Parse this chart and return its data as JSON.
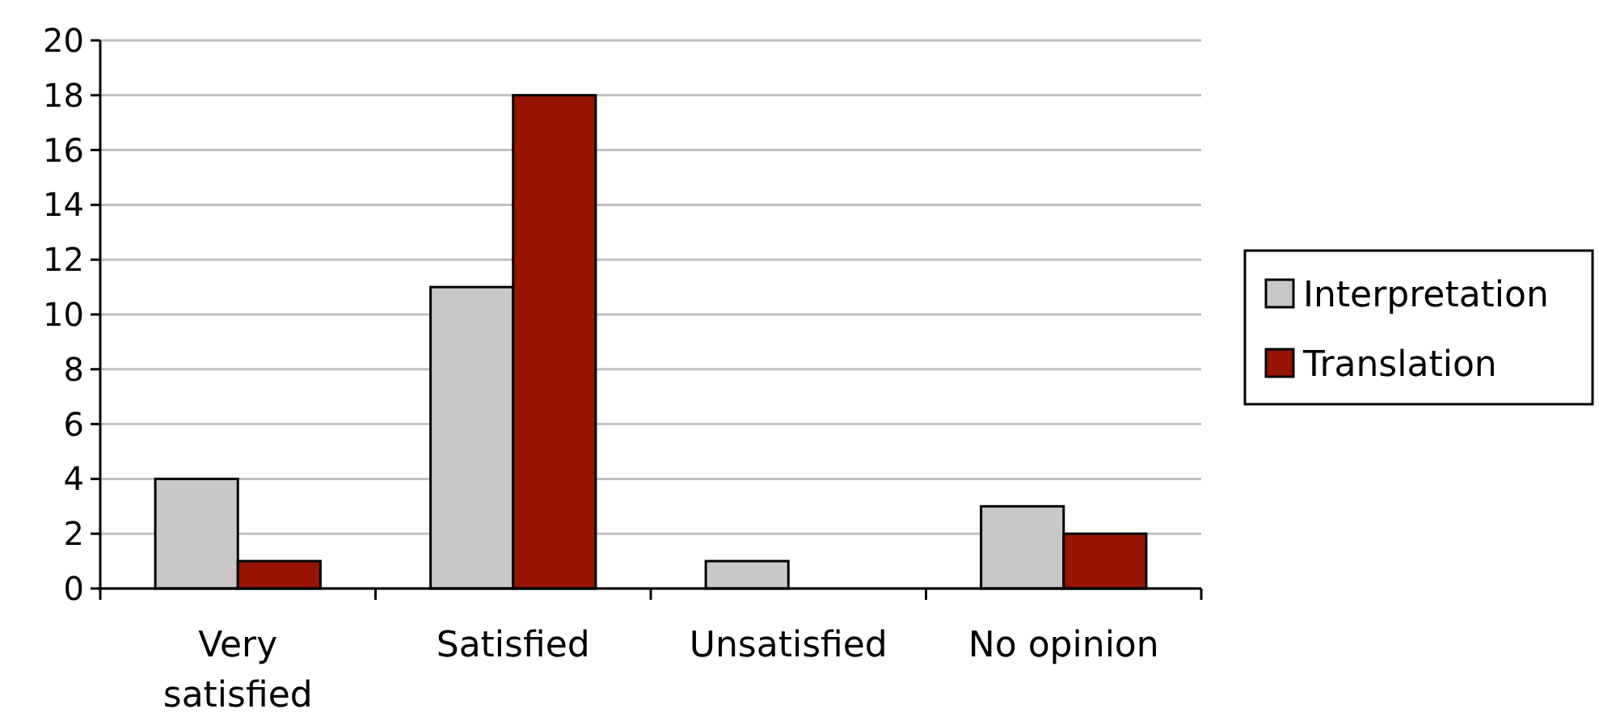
{
  "chart_data": {
    "type": "bar",
    "categories": [
      "Very satisfied",
      "Satisfied",
      "Unsatisfied",
      "No opinion"
    ],
    "series": [
      {
        "name": "Interpretation",
        "color": "#c8c8c8",
        "values": [
          4,
          11,
          1,
          3
        ]
      },
      {
        "name": "Translation",
        "color": "#961400",
        "values": [
          1,
          18,
          0,
          2
        ]
      }
    ],
    "ylim": [
      0,
      20
    ],
    "yticks": [
      0,
      2,
      4,
      6,
      8,
      10,
      12,
      14,
      16,
      18,
      20
    ],
    "grid": "y",
    "legend": "right"
  }
}
